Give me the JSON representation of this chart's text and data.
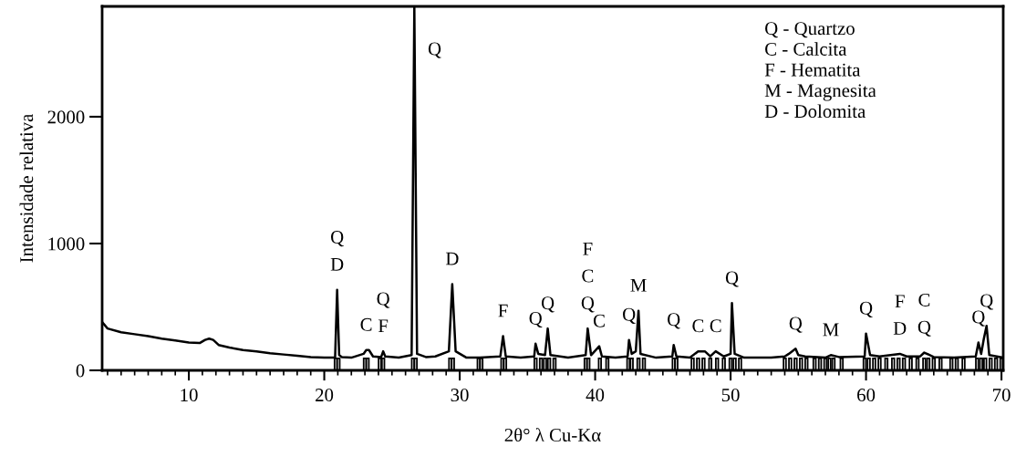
{
  "chart_data": {
    "type": "line",
    "xlabel": "2θ° λ Cu-Kα",
    "ylabel": "Intensidade relativa",
    "xlim": [
      3.6,
      70.13
    ],
    "ylim": [
      0,
      2870
    ],
    "xticks": [
      {
        "value": 4,
        "label": null
      },
      {
        "value": 5,
        "label": null
      },
      {
        "value": 6,
        "label": null
      },
      {
        "value": 7,
        "label": null
      },
      {
        "value": 8,
        "label": null
      },
      {
        "value": 9,
        "label": null
      },
      10,
      {
        "value": 11,
        "label": null
      },
      {
        "value": 12,
        "label": null
      },
      {
        "value": 13,
        "label": null
      },
      {
        "value": 14,
        "label": null
      },
      {
        "value": 15,
        "label": null
      },
      {
        "value": 16,
        "label": null
      },
      {
        "value": 17,
        "label": null
      },
      {
        "value": 18,
        "label": null
      },
      {
        "value": 19,
        "label": null
      },
      20,
      {
        "value": 21,
        "label": null
      },
      {
        "value": 22,
        "label": null
      },
      {
        "value": 23,
        "label": null
      },
      {
        "value": 24,
        "label": null
      },
      {
        "value": 25,
        "label": null
      },
      {
        "value": 26,
        "label": null
      },
      {
        "value": 27,
        "label": null
      },
      {
        "value": 28,
        "label": null
      },
      {
        "value": 29,
        "label": null
      },
      30,
      {
        "value": 31,
        "label": null
      },
      {
        "value": 32,
        "label": null
      },
      {
        "value": 33,
        "label": null
      },
      {
        "value": 34,
        "label": null
      },
      {
        "value": 35,
        "label": null
      },
      {
        "value": 36,
        "label": null
      },
      {
        "value": 37,
        "label": null
      },
      {
        "value": 38,
        "label": null
      },
      {
        "value": 39,
        "label": null
      },
      40,
      {
        "value": 41,
        "label": null
      },
      {
        "value": 42,
        "label": null
      },
      {
        "value": 43,
        "label": null
      },
      {
        "value": 44,
        "label": null
      },
      {
        "value": 45,
        "label": null
      },
      {
        "value": 46,
        "label": null
      },
      {
        "value": 47,
        "label": null
      },
      {
        "value": 48,
        "label": null
      },
      {
        "value": 49,
        "label": null
      },
      50,
      {
        "value": 51,
        "label": null
      },
      {
        "value": 52,
        "label": null
      },
      {
        "value": 53,
        "label": null
      },
      {
        "value": 54,
        "label": null
      },
      {
        "value": 55,
        "label": null
      },
      {
        "value": 56,
        "label": null
      },
      {
        "value": 57,
        "label": null
      },
      {
        "value": 58,
        "label": null
      },
      {
        "value": 59,
        "label": null
      },
      60,
      {
        "value": 61,
        "label": null
      },
      {
        "value": 62,
        "label": null
      },
      {
        "value": 63,
        "label": null
      },
      {
        "value": 64,
        "label": null
      },
      {
        "value": 65,
        "label": null
      },
      {
        "value": 66,
        "label": null
      },
      {
        "value": 67,
        "label": null
      },
      {
        "value": 68,
        "label": null
      },
      {
        "value": 69,
        "label": null
      },
      70
    ],
    "yticks": [
      0,
      1000,
      2000
    ],
    "grid": false,
    "legend": false,
    "marker": "none",
    "line_style": "solid",
    "series": [
      {
        "color": "#000000",
        "x": [
          3.6,
          4,
          5,
          6,
          7,
          8,
          9,
          10,
          10.8,
          11.2,
          11.5,
          11.8,
          12.2,
          13,
          14,
          15,
          16,
          17,
          18,
          19,
          20,
          20.8,
          20.95,
          21.1,
          21.3,
          22,
          22.9,
          23.1,
          23.3,
          23.6,
          24.2,
          24.35,
          24.5,
          25.5,
          26.45,
          26.65,
          26.85,
          27.5,
          28.2,
          29.2,
          29.45,
          29.7,
          30.5,
          31.5,
          33.0,
          33.2,
          33.4,
          34.5,
          35.5,
          35.6,
          35.8,
          36.3,
          36.5,
          36.7,
          38,
          39.3,
          39.45,
          39.7,
          40.3,
          40.5,
          41.5,
          42.4,
          42.5,
          42.7,
          43.0,
          43.2,
          43.35,
          44.5,
          45.7,
          45.8,
          46.0,
          47.0,
          47.6,
          48.1,
          48.5,
          48.9,
          49.5,
          50.0,
          50.1,
          50.3,
          51,
          53,
          54,
          54.3,
          54.8,
          55,
          55.5,
          57,
          57.4,
          58,
          59.9,
          60.0,
          60.3,
          61,
          62.5,
          63,
          64,
          64.3,
          65,
          66.5,
          68.1,
          68.3,
          68.5,
          68.7,
          68.9,
          69.1,
          70.13
        ],
        "values": [
          380,
          330,
          300,
          285,
          270,
          250,
          235,
          220,
          215,
          240,
          250,
          240,
          200,
          180,
          160,
          150,
          135,
          125,
          115,
          105,
          100,
          100,
          635,
          120,
          105,
          100,
          130,
          160,
          160,
          110,
          105,
          150,
          110,
          100,
          120,
          2870,
          130,
          105,
          110,
          150,
          680,
          150,
          100,
          100,
          110,
          270,
          110,
          100,
          110,
          210,
          130,
          120,
          330,
          120,
          100,
          120,
          330,
          120,
          190,
          110,
          100,
          110,
          240,
          130,
          150,
          470,
          130,
          100,
          110,
          200,
          110,
          100,
          150,
          150,
          110,
          150,
          110,
          130,
          530,
          130,
          100,
          100,
          110,
          130,
          170,
          120,
          110,
          100,
          120,
          105,
          110,
          290,
          120,
          110,
          130,
          110,
          110,
          140,
          105,
          100,
          110,
          220,
          130,
          250,
          350,
          120,
          100
        ]
      },
      {
        "type": "bar",
        "color": "#000000",
        "x": [
          20.85,
          21.05,
          23.0,
          23.2,
          24.1,
          24.35,
          26.55,
          26.75,
          29.3,
          29.5,
          31.4,
          31.6,
          33.15,
          33.35,
          35.6,
          36.0,
          36.3,
          36.6,
          37.0,
          39.3,
          39.5,
          40.35,
          40.9,
          42.45,
          42.7,
          43.2,
          43.6,
          45.8,
          46.0,
          47.2,
          47.6,
          48.0,
          48.5,
          49.0,
          49.5,
          50.0,
          50.3,
          50.7,
          54.0,
          54.4,
          54.8,
          55.2,
          55.6,
          56.2,
          56.6,
          57.0,
          57.3,
          57.6,
          58.2,
          59.9,
          60.2,
          60.6,
          61.0,
          61.5,
          62.0,
          62.4,
          62.8,
          63.3,
          63.8,
          64.3,
          64.6,
          65.0,
          65.5,
          66.3,
          66.7,
          67.2,
          68.2,
          68.5,
          68.8,
          69.2,
          69.6,
          70.0
        ],
        "values": [
          95,
          95,
          95,
          95,
          95,
          95,
          95,
          95,
          95,
          95,
          95,
          95,
          95,
          95,
          95,
          95,
          95,
          95,
          95,
          95,
          95,
          95,
          95,
          95,
          95,
          95,
          95,
          95,
          95,
          95,
          95,
          95,
          95,
          95,
          95,
          95,
          95,
          95,
          95,
          95,
          95,
          95,
          95,
          95,
          95,
          95,
          95,
          95,
          95,
          95,
          95,
          95,
          95,
          95,
          95,
          95,
          95,
          95,
          95,
          95,
          95,
          95,
          95,
          95,
          95,
          95,
          95,
          95,
          95,
          95,
          95,
          95
        ]
      }
    ],
    "annotations": [
      "Q - Quartzo",
      "C - Calcita",
      "F - Hematita",
      "M - Magnesita",
      "D - Dolomita",
      {
        "text": "Q\nD",
        "x": 20.95,
        "y": 635
      },
      {
        "text": "C",
        "x": 23.1,
        "y": 160
      },
      {
        "text": "Q\nF",
        "x": 24.35,
        "y": 150
      },
      {
        "text": "Q",
        "x": 26.65,
        "y": 2870
      },
      {
        "text": "D",
        "x": 29.45,
        "y": 680
      },
      {
        "text": "F",
        "x": 33.2,
        "y": 270
      },
      {
        "text": "Q",
        "x": 35.6,
        "y": 210
      },
      {
        "text": "Q",
        "x": 36.5,
        "y": 330
      },
      {
        "text": "F\nC\nQ",
        "x": 39.45,
        "y": 330
      },
      {
        "text": "C",
        "x": 40.3,
        "y": 190
      },
      {
        "text": "Q",
        "x": 42.5,
        "y": 240
      },
      {
        "text": "M",
        "x": 43.2,
        "y": 470
      },
      {
        "text": "Q",
        "x": 45.8,
        "y": 200
      },
      {
        "text": "C",
        "x": 47.6,
        "y": 150
      },
      {
        "text": "C",
        "x": 48.9,
        "y": 150
      },
      {
        "text": "Q",
        "x": 50.1,
        "y": 530
      },
      {
        "text": "Q",
        "x": 54.8,
        "y": 170
      },
      {
        "text": "M",
        "x": 57.4,
        "y": 120
      },
      {
        "text": "Q",
        "x": 60.0,
        "y": 290
      },
      {
        "text": "F\nD",
        "x": 62.5,
        "y": 130
      },
      {
        "text": "C\nQ",
        "x": 64.3,
        "y": 140
      },
      {
        "text": "Q",
        "x": 68.3,
        "y": 220
      },
      {
        "text": "Q",
        "x": 68.9,
        "y": 350
      }
    ]
  }
}
